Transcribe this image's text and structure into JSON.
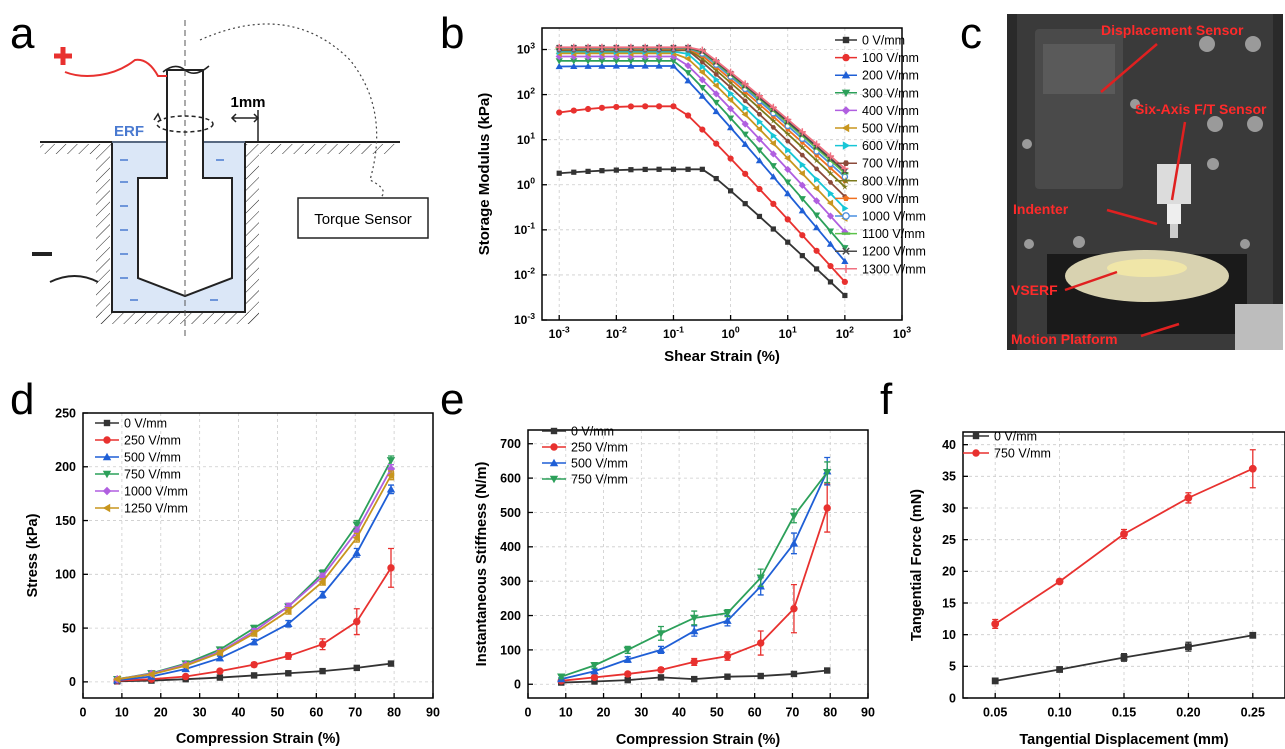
{
  "panel_letters": {
    "a": "a",
    "b": "b",
    "c": "c",
    "d": "d",
    "e": "e",
    "f": "f"
  },
  "schematic": {
    "plus_label": "+",
    "minus_label": "−",
    "erf_label": "ERF",
    "gap_label": "1mm",
    "torque_sensor_label": "Torque Sensor"
  },
  "photo_labels": {
    "displacement_sensor": "Displacement Sensor",
    "ft_sensor": "Six-Axis F/T Sensor",
    "indenter": "Indenter",
    "vserf": "VSERF",
    "motion_platform": "Motion Platform"
  },
  "colors": {
    "red": "#e8312f",
    "black": "#333333",
    "blue": "#1f5fd6",
    "green": "#2ca05a",
    "purple": "#b05fe0",
    "gold": "#c8961e",
    "cyan": "#17c6d6",
    "brown": "#8b4a3a",
    "olive": "#7c7a1c",
    "orange": "#f07020",
    "lightblue": "#4a8fe0",
    "lightgreen": "#5cc24a",
    "darkgray": "#4a4a4a",
    "pink": "#f07080"
  },
  "chart_data": [
    {
      "id": "b",
      "type": "line",
      "xscale": "log",
      "yscale": "log",
      "xlabel": "Shear Strain (%)",
      "ylabel": "Storage Modulus (kPa)",
      "xlim": [
        0.0005,
        1000
      ],
      "ylim": [
        0.001,
        3000
      ],
      "xticks": [
        {
          "v": 0.001,
          "b": "10",
          "e": "-3"
        },
        {
          "v": 0.01,
          "b": "10",
          "e": "-2"
        },
        {
          "v": 0.1,
          "b": "10",
          "e": "-1"
        },
        {
          "v": 1,
          "b": "10",
          "e": "0"
        },
        {
          "v": 10,
          "b": "10",
          "e": "1"
        },
        {
          "v": 100,
          "b": "10",
          "e": "2"
        },
        {
          "v": 1000,
          "b": "10",
          "e": "3"
        }
      ],
      "yticks": [
        {
          "v": 0.001,
          "b": "10",
          "e": "-3"
        },
        {
          "v": 0.01,
          "b": "10",
          "e": "-2"
        },
        {
          "v": 0.1,
          "b": "10",
          "e": "-1"
        },
        {
          "v": 1,
          "b": "10",
          "e": "0"
        },
        {
          "v": 10,
          "b": "10",
          "e": "1"
        },
        {
          "v": 100,
          "b": "10",
          "e": "2"
        },
        {
          "v": 1000,
          "b": "10",
          "e": "3"
        }
      ],
      "legend": "right",
      "series": [
        {
          "name": "0 V/mm",
          "color": "#333333",
          "marker": "square",
          "plateau": 2.2,
          "start": 1.8,
          "knee": 0.35,
          "end": 0.0035
        },
        {
          "name": "100 V/mm",
          "color": "#e8312f",
          "marker": "circle",
          "plateau": 55,
          "start": 40,
          "knee": 0.12,
          "end": 0.007
        },
        {
          "name": "200 V/mm",
          "color": "#1f5fd6",
          "marker": "triangle",
          "plateau": 430,
          "start": 420,
          "knee": 0.1,
          "end": 0.02
        },
        {
          "name": "300 V/mm",
          "color": "#2ca05a",
          "marker": "tridown",
          "plateau": 560,
          "start": 560,
          "knee": 0.11,
          "end": 0.04
        },
        {
          "name": "400 V/mm",
          "color": "#b05fe0",
          "marker": "diamond",
          "plateau": 700,
          "start": 700,
          "knee": 0.12,
          "end": 0.09
        },
        {
          "name": "500 V/mm",
          "color": "#c8961e",
          "marker": "trileft",
          "plateau": 820,
          "start": 820,
          "knee": 0.14,
          "end": 0.18
        },
        {
          "name": "600 V/mm",
          "color": "#17c6d6",
          "marker": "triright",
          "plateau": 900,
          "start": 900,
          "knee": 0.16,
          "end": 0.3
        },
        {
          "name": "700 V/mm",
          "color": "#8b4a3a",
          "marker": "hexagon",
          "plateau": 960,
          "start": 960,
          "knee": 0.18,
          "end": 0.55
        },
        {
          "name": "800 V/mm",
          "color": "#7c7a1c",
          "marker": "star",
          "plateau": 1000,
          "start": 1000,
          "knee": 0.2,
          "end": 0.9
        },
        {
          "name": "900 V/mm",
          "color": "#f07020",
          "marker": "pentagon",
          "plateau": 1040,
          "start": 1040,
          "knee": 0.22,
          "end": 1.2
        },
        {
          "name": "1000 V/mm",
          "color": "#4a8fe0",
          "marker": "circleopen",
          "plateau": 1070,
          "start": 1070,
          "knee": 0.24,
          "end": 1.5
        },
        {
          "name": "1100 V/mm",
          "color": "#5cc24a",
          "marker": "dash",
          "plateau": 1090,
          "start": 1090,
          "knee": 0.25,
          "end": 1.8
        },
        {
          "name": "1200 V/mm",
          "color": "#4a4a4a",
          "marker": "x",
          "plateau": 1100,
          "start": 1100,
          "knee": 0.26,
          "end": 2.0
        },
        {
          "name": "1300 V/mm",
          "color": "#f07080",
          "marker": "cross",
          "plateau": 1120,
          "start": 1120,
          "knee": 0.27,
          "end": 2.3
        }
      ],
      "x": [
        0.001,
        0.0018,
        0.0032,
        0.0056,
        0.01,
        0.018,
        0.032,
        0.056,
        0.1,
        0.18,
        0.32,
        0.56,
        1,
        1.8,
        3.2,
        5.6,
        10,
        18,
        32,
        56,
        100
      ]
    },
    {
      "id": "d",
      "type": "line",
      "xlabel": "Compression Strain (%)",
      "ylabel": "Stress (kPa)",
      "xlim": [
        0,
        90
      ],
      "ylim": [
        -15,
        250
      ],
      "xticks": [
        0,
        10,
        20,
        30,
        40,
        50,
        60,
        70,
        80,
        90
      ],
      "yticks": [
        0,
        50,
        100,
        150,
        200,
        250
      ],
      "legend": "top-left",
      "x": [
        8.8,
        17.6,
        26.4,
        35.2,
        44.0,
        52.8,
        61.6,
        70.4,
        79.2
      ],
      "series": [
        {
          "name": "0 V/mm",
          "color": "#333333",
          "marker": "square",
          "values": [
            0.5,
            1.2,
            2.5,
            4,
            6,
            8,
            10,
            13,
            17
          ],
          "err": [
            0.5,
            0.5,
            0.5,
            0.8,
            1,
            1,
            1,
            1.5,
            1.5
          ]
        },
        {
          "name": "250 V/mm",
          "color": "#e8312f",
          "marker": "circle",
          "values": [
            1,
            2.5,
            5,
            10,
            16,
            24,
            35,
            56,
            106
          ],
          "err": [
            0.5,
            1,
            1,
            1.5,
            2,
            3,
            5,
            12,
            18
          ]
        },
        {
          "name": "500 V/mm",
          "color": "#1f5fd6",
          "marker": "triangle",
          "values": [
            1.5,
            5,
            12,
            22,
            37,
            54,
            81,
            120,
            179
          ],
          "err": [
            0.5,
            1,
            1.5,
            2,
            2.5,
            3,
            3,
            4,
            4
          ]
        },
        {
          "name": "750 V/mm",
          "color": "#2ca05a",
          "marker": "tridown",
          "values": [
            2.5,
            8,
            17,
            30,
            50,
            70,
            101,
            146,
            206
          ],
          "err": [
            0.5,
            1,
            1.5,
            2,
            2.5,
            3,
            3,
            4,
            4
          ]
        },
        {
          "name": "1000 V/mm",
          "color": "#b05fe0",
          "marker": "diamond",
          "values": [
            2.5,
            7.5,
            16,
            28,
            47,
            70,
            98,
            140,
            198
          ],
          "err": [
            0.5,
            1,
            1.5,
            2,
            2.5,
            3,
            3,
            4,
            4
          ]
        },
        {
          "name": "1250 V/mm",
          "color": "#c8961e",
          "marker": "trileft",
          "values": [
            2.5,
            7,
            15,
            27,
            45,
            66,
            93,
            134,
            192
          ],
          "err": [
            0.5,
            1,
            1.5,
            2,
            2.5,
            3,
            3,
            4,
            4
          ]
        }
      ]
    },
    {
      "id": "e",
      "type": "line",
      "xlabel": "Compression Strain (%)",
      "ylabel": "Instantaneous Stiffness (N/m)",
      "xlim": [
        0,
        90
      ],
      "ylim": [
        -40,
        740
      ],
      "xticks": [
        0,
        10,
        20,
        30,
        40,
        50,
        60,
        70,
        80,
        90
      ],
      "yticks": [
        0,
        100,
        200,
        300,
        400,
        500,
        600,
        700
      ],
      "legend": "top-left",
      "x": [
        8.8,
        17.6,
        26.4,
        35.2,
        44.0,
        52.8,
        61.6,
        70.4,
        79.2
      ],
      "series": [
        {
          "name": "0 V/mm",
          "color": "#333333",
          "marker": "square",
          "values": [
            5,
            8,
            12,
            20,
            15,
            22,
            24,
            30,
            40
          ],
          "err": [
            2,
            2,
            3,
            4,
            3,
            4,
            4,
            5,
            6
          ]
        },
        {
          "name": "250 V/mm",
          "color": "#e8312f",
          "marker": "circle",
          "values": [
            10,
            20,
            30,
            42,
            65,
            82,
            120,
            220,
            513
          ],
          "err": [
            3,
            4,
            5,
            6,
            10,
            12,
            35,
            70,
            70
          ]
        },
        {
          "name": "500 V/mm",
          "color": "#1f5fd6",
          "marker": "triangle",
          "values": [
            15,
            38,
            72,
            100,
            155,
            185,
            285,
            410,
            620
          ],
          "err": [
            4,
            6,
            8,
            10,
            15,
            15,
            25,
            30,
            40
          ]
        },
        {
          "name": "750 V/mm",
          "color": "#2ca05a",
          "marker": "tridown",
          "values": [
            22,
            55,
            100,
            148,
            193,
            207,
            310,
            490,
            617
          ],
          "err": [
            5,
            8,
            10,
            20,
            20,
            10,
            25,
            20,
            30
          ]
        }
      ]
    },
    {
      "id": "f",
      "type": "line",
      "xlabel": "Tangential Displacement (mm)",
      "ylabel": "Tangential Force (mN)",
      "xlim": [
        0.025,
        0.275
      ],
      "ylim": [
        0,
        42
      ],
      "xticks": [
        {
          "v": 0.05,
          "t": "0.05"
        },
        {
          "v": 0.1,
          "t": "0.10"
        },
        {
          "v": 0.15,
          "t": "0.15"
        },
        {
          "v": 0.2,
          "t": "0.20"
        },
        {
          "v": 0.25,
          "t": "0.25"
        }
      ],
      "yticks": [
        0,
        5,
        10,
        15,
        20,
        25,
        30,
        35,
        40
      ],
      "legend": "top-left",
      "x": [
        0.05,
        0.1,
        0.15,
        0.2,
        0.25
      ],
      "series": [
        {
          "name": "0 V/mm",
          "color": "#333333",
          "marker": "square",
          "values": [
            2.7,
            4.5,
            6.4,
            8.1,
            9.9
          ],
          "err": [
            0.2,
            0.2,
            0.6,
            0.7,
            0.4
          ]
        },
        {
          "name": "750 V/mm",
          "color": "#e8312f",
          "marker": "circle",
          "values": [
            11.7,
            18.4,
            25.9,
            31.6,
            36.2
          ],
          "err": [
            0.7,
            0.3,
            0.7,
            0.8,
            3.0
          ]
        }
      ]
    }
  ]
}
